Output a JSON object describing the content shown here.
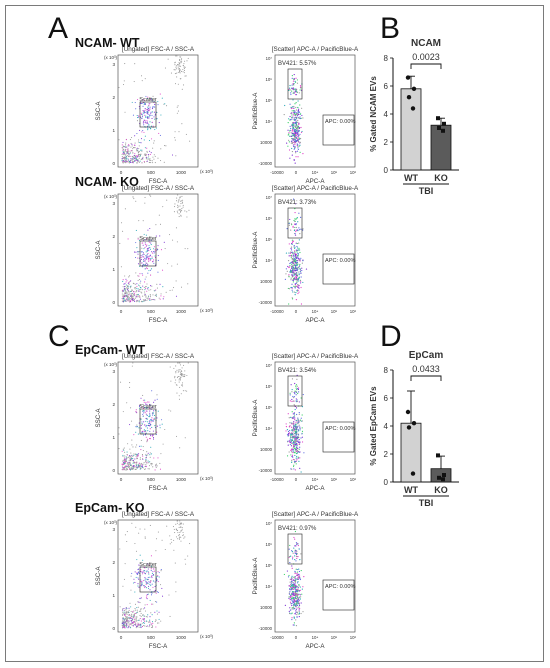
{
  "panels": {
    "A": {
      "letter": "A"
    },
    "B": {
      "letter": "B"
    },
    "C": {
      "letter": "C"
    },
    "D": {
      "letter": "D"
    }
  },
  "rows": [
    {
      "title": "NCAM- WT",
      "left": {
        "header": "[Ungated] FSC-A / SSC-A",
        "ylabel": "SSC-A",
        "xlabel": "FSC-A",
        "yexp": "(x 10³)",
        "xexp": "(x 10³)",
        "gate": "Scatter",
        "xticks": [
          "0",
          "500",
          "1000"
        ],
        "yticks": [
          "0",
          "1",
          "2",
          "3"
        ]
      },
      "right": {
        "header": "[Scatter] APC-A / PacificBlue-A",
        "ylabel": "PacificBlue-A",
        "xlabel": "APC-A",
        "gate_top": "BV421: 5.57%",
        "gate_apc": "APC: 0.00%",
        "xticks": [
          "-10000",
          "0",
          "10⁴",
          "10⁵",
          "10⁶"
        ],
        "yticks": [
          "-10000",
          "10000",
          "10⁴",
          "10⁵",
          "10⁶",
          "10⁷"
        ]
      }
    },
    {
      "title": "NCAM- KO",
      "left": {
        "header": "[Ungated] FSC-A / SSC-A",
        "ylabel": "SSC-A",
        "xlabel": "FSC-A",
        "yexp": "(x 10³)",
        "xexp": "(x 10³)",
        "gate": "Scatter",
        "xticks": [
          "0",
          "500",
          "1000"
        ],
        "yticks": [
          "0",
          "1",
          "2",
          "3"
        ]
      },
      "right": {
        "header": "[Scatter] APC-A / PacificBlue-A",
        "ylabel": "PacificBlue-A",
        "xlabel": "APC-A",
        "gate_top": "BV421: 3.73%",
        "gate_apc": "APC: 0.00%",
        "xticks": [
          "-10000",
          "0",
          "10⁴",
          "10⁵",
          "10⁶"
        ],
        "yticks": [
          "-10000",
          "10000",
          "10⁴",
          "10⁵",
          "10⁶",
          "10⁷"
        ]
      }
    },
    {
      "title": "EpCam- WT",
      "left": {
        "header": "[Ungated] FSC-A / SSC-A",
        "ylabel": "SSC-A",
        "xlabel": "FSC-A",
        "yexp": "(x 10³)",
        "xexp": "(x 10³)",
        "gate": "Scatter",
        "xticks": [
          "0",
          "500",
          "1000"
        ],
        "yticks": [
          "0",
          "1",
          "2",
          "3"
        ]
      },
      "right": {
        "header": "[Scatter] APC-A / PacificBlue-A",
        "ylabel": "PacificBlue-A",
        "xlabel": "APC-A",
        "gate_top": "BV421: 3.54%",
        "gate_apc": "APC: 0.00%",
        "xticks": [
          "-10000",
          "0",
          "10⁴",
          "10⁵",
          "10⁶"
        ],
        "yticks": [
          "-10000",
          "10000",
          "10⁴",
          "10⁵",
          "10⁶",
          "10⁷"
        ]
      }
    },
    {
      "title": "EpCam- KO",
      "left": {
        "header": "[Ungated] FSC-A / SSC-A",
        "ylabel": "SSC-A",
        "xlabel": "FSC-A",
        "yexp": "(x 10³)",
        "xexp": "(x 10³)",
        "gate": "Scatter",
        "xticks": [
          "0",
          "500",
          "1000"
        ],
        "yticks": [
          "0",
          "1",
          "2",
          "3"
        ]
      },
      "right": {
        "header": "[Scatter] APC-A / PacificBlue-A",
        "ylabel": "PacificBlue-A",
        "xlabel": "APC-A",
        "gate_top": "BV421: 0.97%",
        "gate_apc": "APC: 0.00%",
        "xticks": [
          "-10000",
          "0",
          "10⁴",
          "10⁵",
          "10⁶"
        ],
        "yticks": [
          "-10000",
          "10000",
          "10⁴",
          "10⁵",
          "10⁶",
          "10⁷"
        ]
      }
    }
  ],
  "chart_data": [
    {
      "panel": "B",
      "type": "bar",
      "title": "NCAM",
      "ylabel": "% Gated NCAM EVs",
      "xlabel": "TBI",
      "categories": [
        "WT",
        "KO"
      ],
      "values": [
        5.8,
        3.2
      ],
      "errors": [
        0.9,
        0.5
      ],
      "points": [
        [
          6.6,
          5.8,
          5.2,
          4.4
        ],
        [
          3.7,
          3.3,
          3.0,
          2.8
        ]
      ],
      "ylim": [
        0,
        8
      ],
      "yticks": [
        "0",
        "2",
        "4",
        "6",
        "8"
      ],
      "pvalue": "0.0023",
      "colors": {
        "WT": "#d2d2d2",
        "KO": "#5b5b5b"
      }
    },
    {
      "panel": "D",
      "type": "bar",
      "title": "EpCam",
      "ylabel": "% Gated EpCam EVs",
      "xlabel": "TBI",
      "categories": [
        "WT",
        "KO"
      ],
      "values": [
        4.2,
        0.95
      ],
      "errors": [
        2.3,
        0.9
      ],
      "points": [
        [
          5.0,
          4.2,
          3.9,
          0.6
        ],
        [
          1.9,
          0.5,
          0.3,
          0.2
        ]
      ],
      "ylim": [
        0,
        8
      ],
      "yticks": [
        "0",
        "2",
        "4",
        "6",
        "8"
      ],
      "pvalue": "0.0433",
      "colors": {
        "WT": "#d2d2d2",
        "KO": "#5b5b5b"
      }
    }
  ]
}
